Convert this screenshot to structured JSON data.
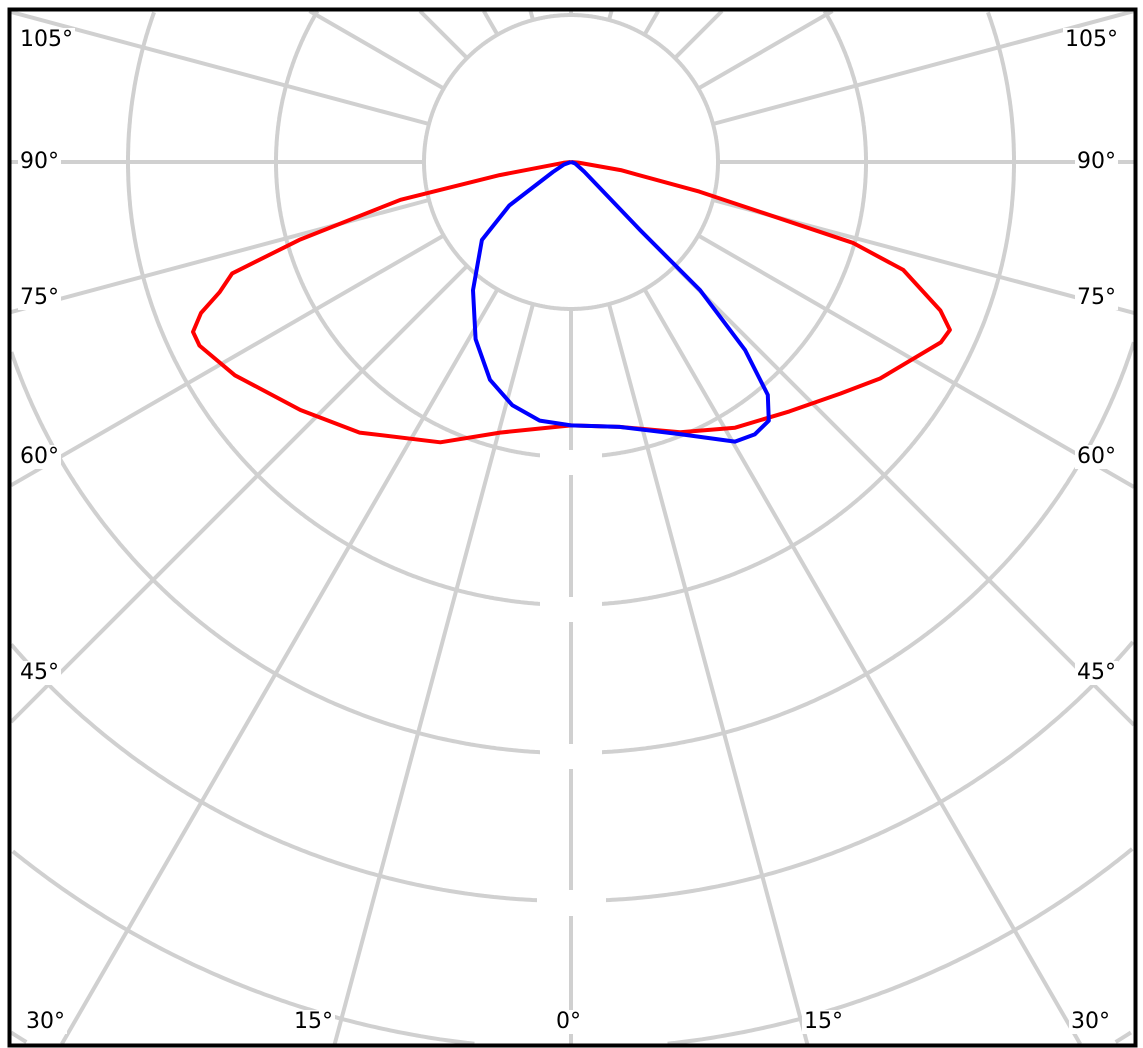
{
  "diagram": {
    "type": "polar-light-distribution",
    "grid_color": "#d0d0d0",
    "frame_color": "#000000",
    "angle_step_deg": 15,
    "left_labels": [
      "105°",
      "90°",
      "75°",
      "60°",
      "45°"
    ],
    "right_labels": [
      "105°",
      "90°",
      "75°",
      "60°",
      "45°"
    ],
    "bottom_labels": [
      "30°",
      "15°",
      "0°",
      "15°",
      "30°"
    ],
    "series": [
      {
        "color": "#ff0000",
        "points": [
          [
            -84,
            0.05
          ],
          [
            -79.6,
            0.49
          ],
          [
            -77.5,
            1.18
          ],
          [
            -74,
            1.91
          ],
          [
            -71.8,
            2.41
          ],
          [
            -69.7,
            2.53
          ],
          [
            -67.8,
            2.7
          ],
          [
            -65.8,
            2.8
          ],
          [
            -63.7,
            2.8
          ],
          [
            -57.6,
            2.69
          ],
          [
            -47.5,
            2.48
          ],
          [
            -38,
            2.32
          ],
          [
            -25,
            2.09
          ],
          [
            -14.7,
            1.89
          ],
          [
            0,
            1.78
          ],
          [
            10.4,
            1.82
          ],
          [
            22,
            1.97
          ],
          [
            31.7,
            2.11
          ],
          [
            41.2,
            2.24
          ],
          [
            49.3,
            2.4
          ],
          [
            55,
            2.55
          ],
          [
            64,
            2.78
          ],
          [
            66.1,
            2.8
          ],
          [
            68.1,
            2.69
          ],
          [
            72,
            2.36
          ],
          [
            74,
            1.98
          ],
          [
            77,
            0.89
          ],
          [
            80.7,
            0.34
          ],
          [
            85,
            0.05
          ]
        ]
      },
      {
        "color": "#0000ff",
        "points": [
          [
            -70,
            0.05
          ],
          [
            -61,
            0.14
          ],
          [
            -54.8,
            0.51
          ],
          [
            -48.8,
            0.8
          ],
          [
            -37.4,
            1.09
          ],
          [
            -28.3,
            1.36
          ],
          [
            -20.4,
            1.57
          ],
          [
            -13.6,
            1.69
          ],
          [
            -6.9,
            1.76
          ],
          [
            0,
            1.78
          ],
          [
            10.4,
            1.82
          ],
          [
            21.8,
            1.98
          ],
          [
            30.4,
            2.19
          ],
          [
            34,
            2.22
          ],
          [
            37.4,
            2.2
          ],
          [
            40.2,
            2.06
          ],
          [
            42.8,
            1.73
          ],
          [
            45.2,
            1.23
          ],
          [
            45.4,
            0.66
          ],
          [
            54,
            0.11
          ],
          [
            70,
            0.03
          ]
        ]
      }
    ]
  }
}
